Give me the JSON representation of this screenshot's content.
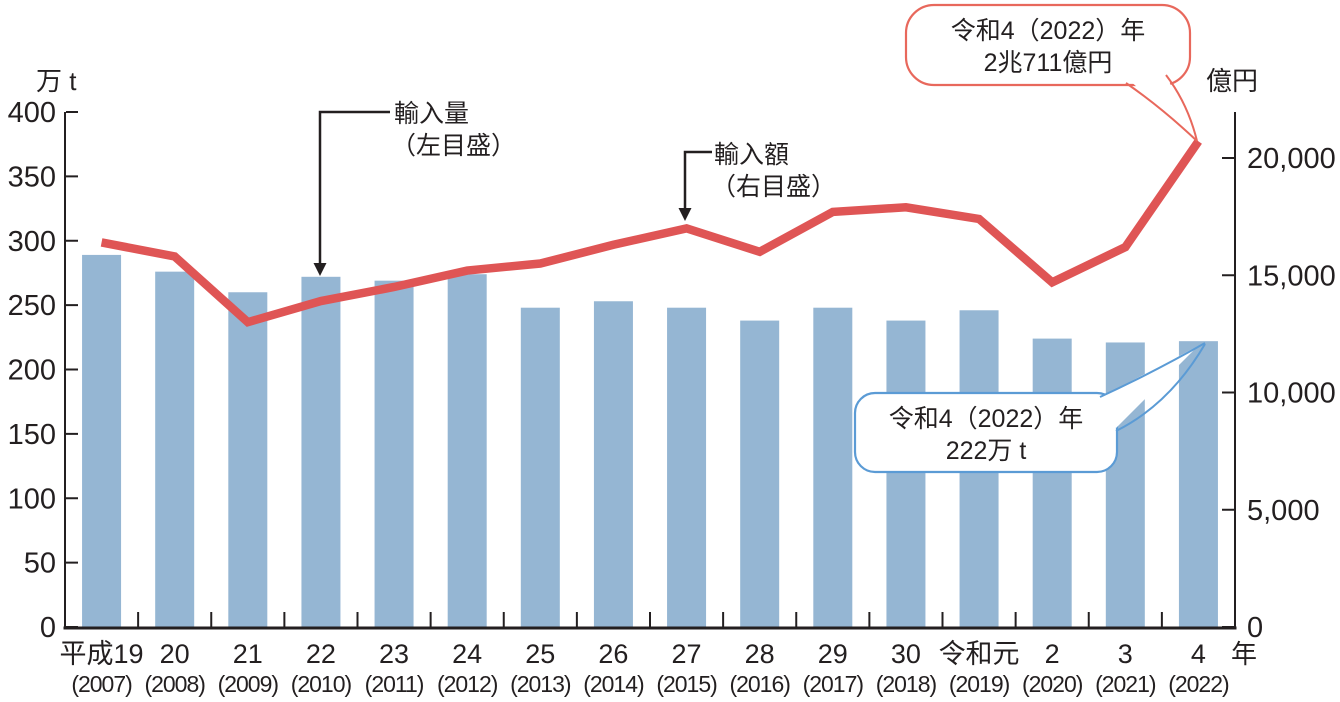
{
  "chart_data": {
    "type": "combo",
    "description": "水産物の輸入量（棒グラフ・左目盛）と輸入額（折れ線・右目盛）の推移",
    "categories": [
      {
        "era": "平成19",
        "west": "(2007)"
      },
      {
        "era": "20",
        "west": "(2008)"
      },
      {
        "era": "21",
        "west": "(2009)"
      },
      {
        "era": "22",
        "west": "(2010)"
      },
      {
        "era": "23",
        "west": "(2011)"
      },
      {
        "era": "24",
        "west": "(2012)"
      },
      {
        "era": "25",
        "west": "(2013)"
      },
      {
        "era": "26",
        "west": "(2014)"
      },
      {
        "era": "27",
        "west": "(2015)"
      },
      {
        "era": "28",
        "west": "(2016)"
      },
      {
        "era": "29",
        "west": "(2017)"
      },
      {
        "era": "30",
        "west": "(2018)"
      },
      {
        "era": "令和元",
        "west": "(2019)"
      },
      {
        "era": "2",
        "west": "(2020)"
      },
      {
        "era": "3",
        "west": "(2021)"
      },
      {
        "era": "4",
        "west": "(2022)"
      }
    ],
    "series": [
      {
        "name": "輸入量（左目盛）",
        "type": "bar",
        "axis": "left",
        "unit": "万t",
        "values": [
          289,
          276,
          260,
          272,
          269,
          274,
          248,
          253,
          248,
          238,
          248,
          238,
          246,
          224,
          221,
          222
        ]
      },
      {
        "name": "輸入額（右目盛）",
        "type": "line",
        "axis": "right",
        "unit": "億円",
        "values": [
          16400,
          15800,
          13000,
          13900,
          14500,
          15200,
          15500,
          16300,
          17000,
          16000,
          17700,
          17900,
          17400,
          14700,
          16200,
          20711
        ]
      }
    ],
    "left_axis": {
      "unit": "万 t",
      "range": [
        0,
        400
      ],
      "ticks": [
        0,
        50,
        100,
        150,
        200,
        250,
        300,
        350,
        400
      ],
      "tick_labels": [
        "0",
        "50",
        "100",
        "150",
        "200",
        "250",
        "300",
        "350",
        "400"
      ]
    },
    "right_axis": {
      "unit": "億円",
      "range": [
        0,
        20000
      ],
      "ticks": [
        0,
        5000,
        10000,
        15000,
        20000
      ],
      "tick_labels": [
        "0",
        "5,000",
        "10,000",
        "15,000",
        "20,000"
      ]
    },
    "x_axis_unit": "年",
    "grid": "none",
    "legend_position": "in-plot annotations with arrows"
  },
  "annotations": {
    "quantity": {
      "line1": "輸入量",
      "line2": "（左目盛）"
    },
    "value": {
      "line1": "輸入額",
      "line2": "（右目盛）"
    }
  },
  "callouts": {
    "value": {
      "line1": "令和4（2022）年",
      "line2": "2兆711億円"
    },
    "quantity": {
      "line1": "令和4（2022）年",
      "line2": "222万 t"
    }
  },
  "colors": {
    "bar": "#95b6d3",
    "line": "#df5555",
    "callout_value_border": "#e8685c",
    "callout_quantity_border": "#5b9bd5",
    "text": "#231f20"
  }
}
